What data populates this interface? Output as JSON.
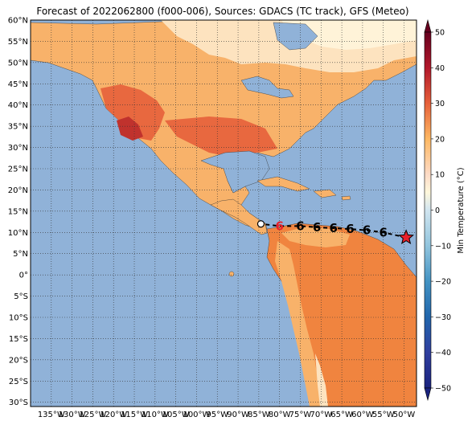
{
  "title": "Forecast of 2022062800 (f000-006), Sources: GDACS (TC track), GFS (Meteo)",
  "map": {
    "lat_labels": [
      "60°N",
      "55°N",
      "50°N",
      "45°N",
      "40°N",
      "35°N",
      "30°N",
      "25°N",
      "20°N",
      "15°N",
      "10°N",
      "5°N",
      "0°",
      "5°S",
      "10°S",
      "15°S",
      "20°S",
      "25°S",
      "30°S"
    ],
    "lon_labels": [
      "135°W",
      "130°W",
      "125°W",
      "120°W",
      "115°W",
      "110°W",
      "105°W",
      "100°W",
      "95°W",
      "90°W",
      "85°W",
      "80°W",
      "75°W",
      "70°W",
      "65°W",
      "60°W",
      "55°W",
      "50°W"
    ],
    "lat_range": [
      -31,
      60
    ],
    "lon_range": [
      -140,
      -47
    ],
    "ocean_color": "#90b2d8",
    "gridlines": "dotted"
  },
  "colorbar": {
    "label": "Min Temperature (°C)",
    "ticks": [
      "50",
      "40",
      "30",
      "20",
      "10",
      "0",
      "−10",
      "−20",
      "−30",
      "−40",
      "−50"
    ],
    "range": [
      -50,
      50
    ],
    "colors": [
      "#1a237e",
      "#303f9f",
      "#2166ac",
      "#4393c3",
      "#92c5de",
      "#d1e5f0",
      "#fddbc7",
      "#fdb863",
      "#f4a582",
      "#e6603a",
      "#b2182b",
      "#67001f"
    ]
  },
  "storm_track": {
    "points": [
      {
        "lon": -49.5,
        "lat": 8.8,
        "symbol": "star"
      },
      {
        "lon": -55.0,
        "lat": 10.0,
        "symbol": "6"
      },
      {
        "lon": -59.0,
        "lat": 10.5,
        "symbol": "6"
      },
      {
        "lon": -63.0,
        "lat": 10.8,
        "symbol": "6"
      },
      {
        "lon": -67.0,
        "lat": 11.0,
        "symbol": "6"
      },
      {
        "lon": -71.0,
        "lat": 11.2,
        "symbol": "6"
      },
      {
        "lon": -75.0,
        "lat": 11.5,
        "symbol": "6"
      },
      {
        "lon": -80.0,
        "lat": 11.5,
        "symbol": "6"
      },
      {
        "lon": -84.5,
        "lat": 12.0,
        "symbol": "circle"
      }
    ],
    "current_position_color": "#e8202a"
  }
}
